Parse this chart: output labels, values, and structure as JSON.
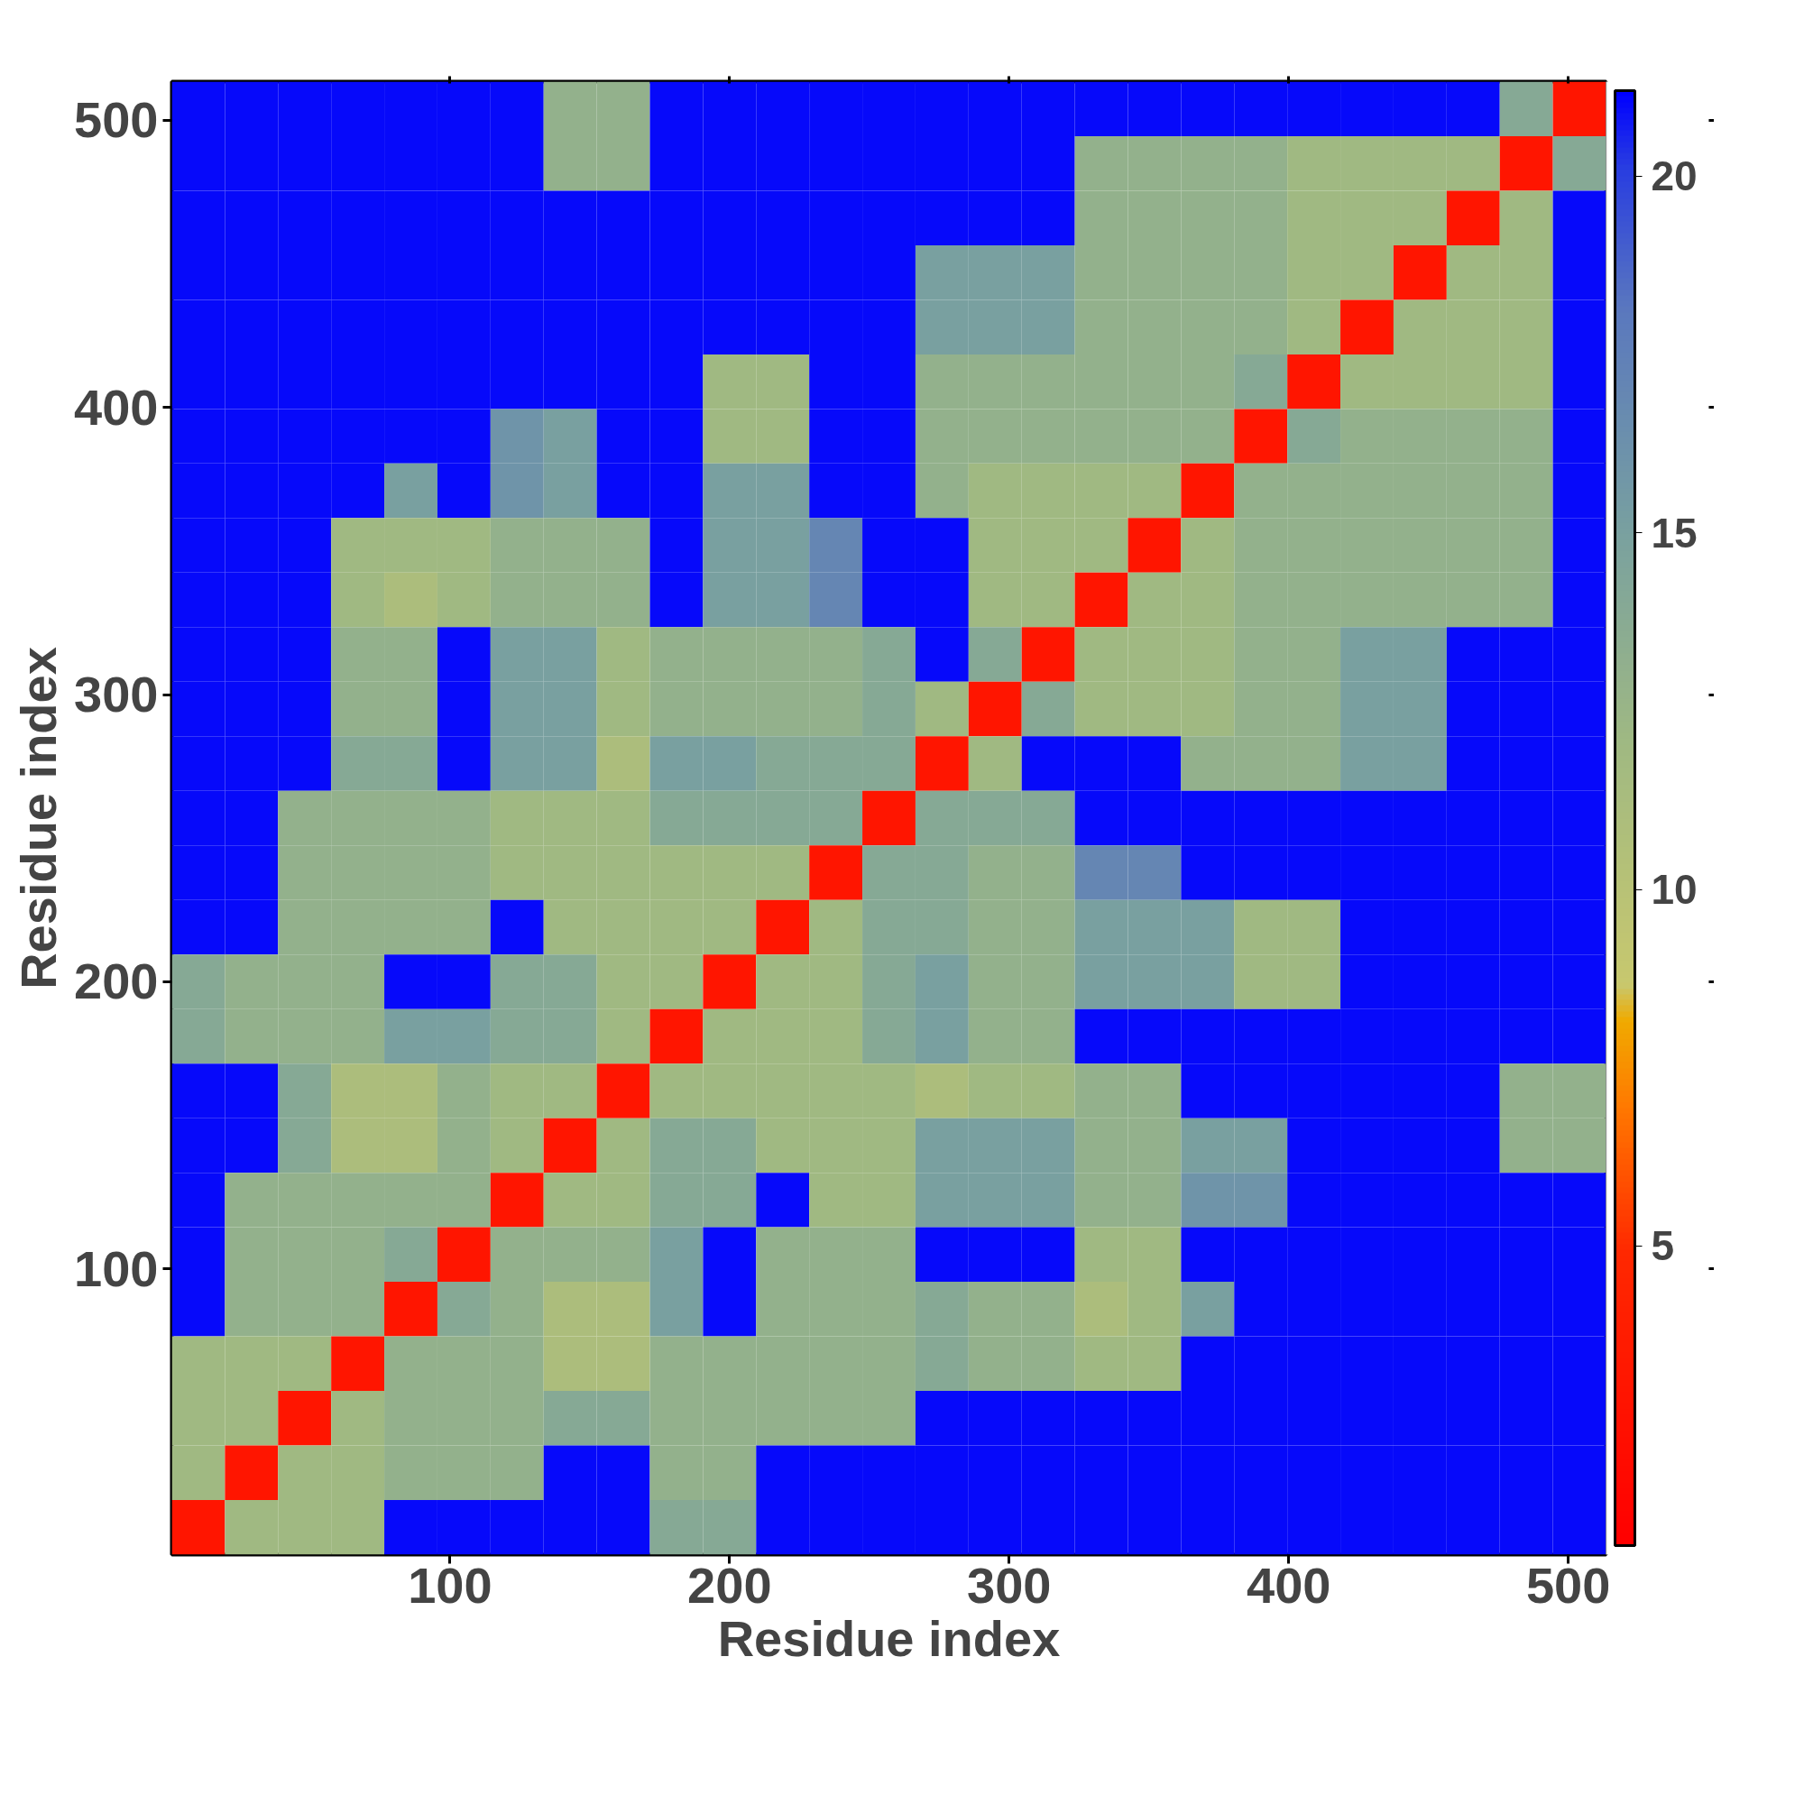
{
  "chart_data": {
    "type": "heatmap",
    "xlabel": "Residue index",
    "ylabel": "Residue index",
    "xlim": [
      0.5,
      513.5
    ],
    "ylim": [
      0.5,
      513.5
    ],
    "xticks": [
      100,
      200,
      300,
      400,
      500
    ],
    "yticks": [
      100,
      200,
      300,
      400,
      500
    ],
    "clim": [
      0.8,
      21.2
    ],
    "cticks": [
      5,
      10,
      15,
      20
    ],
    "cells": [
      [
        21,
        21,
        21,
        21,
        21,
        21,
        21,
        13,
        13,
        21,
        21,
        21,
        21,
        21,
        21,
        21,
        21,
        21,
        21,
        21,
        21,
        21,
        21,
        21,
        21,
        14,
        3
      ],
      [
        21,
        21,
        21,
        21,
        21,
        21,
        21,
        13,
        13,
        21,
        21,
        21,
        21,
        21,
        21,
        21,
        21,
        13,
        13,
        13,
        13,
        12,
        12,
        12,
        12,
        3,
        14
      ],
      [
        21,
        21,
        21,
        21,
        21,
        21,
        21,
        21,
        21,
        21,
        21,
        21,
        21,
        21,
        21,
        21,
        21,
        13,
        13,
        13,
        13,
        12,
        12,
        12,
        3,
        12,
        21
      ],
      [
        21,
        21,
        21,
        21,
        21,
        21,
        21,
        21,
        21,
        21,
        21,
        21,
        21,
        21,
        15,
        15,
        15,
        13,
        13,
        13,
        13,
        12,
        12,
        3,
        12,
        12,
        21
      ],
      [
        21,
        21,
        21,
        21,
        21,
        21,
        21,
        21,
        21,
        21,
        21,
        21,
        21,
        21,
        15,
        15,
        15,
        13,
        13,
        13,
        13,
        12,
        3,
        12,
        12,
        12,
        21
      ],
      [
        21,
        21,
        21,
        21,
        21,
        21,
        21,
        21,
        21,
        21,
        12,
        12,
        21,
        21,
        13,
        13,
        13,
        13,
        13,
        13,
        14,
        3,
        12,
        12,
        12,
        12,
        21
      ],
      [
        21,
        21,
        21,
        21,
        21,
        21,
        16,
        15,
        21,
        21,
        12,
        12,
        21,
        21,
        13,
        13,
        13,
        13,
        13,
        13,
        3,
        14,
        13,
        13,
        13,
        13,
        21
      ],
      [
        21,
        21,
        21,
        21,
        15,
        21,
        16,
        15,
        21,
        21,
        15,
        15,
        21,
        21,
        13,
        12,
        12,
        12,
        12,
        3,
        13,
        13,
        13,
        13,
        13,
        13,
        21
      ],
      [
        21,
        21,
        21,
        12,
        12,
        12,
        13,
        13,
        13,
        21,
        15,
        15,
        17,
        21,
        21,
        12,
        12,
        12,
        3,
        12,
        13,
        13,
        13,
        13,
        13,
        13,
        21
      ],
      [
        21,
        21,
        21,
        12,
        11,
        12,
        13,
        13,
        13,
        21,
        15,
        15,
        17,
        21,
        21,
        12,
        12,
        3,
        12,
        12,
        13,
        13,
        13,
        13,
        13,
        13,
        21
      ],
      [
        21,
        21,
        21,
        13,
        13,
        21,
        15,
        15,
        12,
        13,
        13,
        13,
        13,
        14,
        21,
        14,
        3,
        12,
        12,
        12,
        13,
        13,
        15,
        15,
        21,
        21,
        21
      ],
      [
        21,
        21,
        21,
        13,
        13,
        21,
        15,
        15,
        12,
        13,
        13,
        13,
        13,
        14,
        12,
        3,
        14,
        12,
        12,
        12,
        13,
        13,
        15,
        15,
        21,
        21,
        21
      ],
      [
        21,
        21,
        21,
        14,
        14,
        21,
        15,
        15,
        11,
        15,
        15,
        14,
        14,
        14,
        3,
        12,
        21,
        21,
        21,
        13,
        13,
        13,
        15,
        15,
        21,
        21,
        21
      ],
      [
        21,
        21,
        13,
        13,
        13,
        13,
        12,
        12,
        12,
        14,
        14,
        14,
        14,
        3,
        14,
        14,
        14,
        21,
        21,
        21,
        21,
        21,
        21,
        21,
        21,
        21,
        21
      ],
      [
        21,
        21,
        13,
        13,
        13,
        13,
        12,
        12,
        12,
        12,
        12,
        12,
        3,
        14,
        14,
        13,
        13,
        17,
        17,
        21,
        21,
        21,
        21,
        21,
        21,
        21,
        21
      ],
      [
        21,
        21,
        13,
        13,
        13,
        13,
        21,
        12,
        12,
        12,
        12,
        3,
        12,
        14,
        14,
        13,
        13,
        15,
        15,
        15,
        12,
        12,
        21,
        21,
        21,
        21,
        21
      ],
      [
        14,
        13,
        13,
        13,
        21,
        21,
        14,
        14,
        12,
        12,
        3,
        12,
        12,
        14,
        15,
        13,
        13,
        15,
        15,
        15,
        12,
        12,
        21,
        21,
        21,
        21,
        21
      ],
      [
        14,
        13,
        13,
        13,
        15,
        15,
        14,
        14,
        12,
        3,
        12,
        12,
        12,
        14,
        15,
        13,
        13,
        21,
        21,
        21,
        21,
        21,
        21,
        21,
        21,
        21,
        21
      ],
      [
        21,
        21,
        14,
        11,
        11,
        13,
        12,
        12,
        3,
        12,
        12,
        12,
        12,
        12,
        11,
        12,
        12,
        13,
        13,
        21,
        21,
        21,
        21,
        21,
        21,
        13,
        13
      ],
      [
        21,
        21,
        14,
        11,
        11,
        13,
        12,
        3,
        12,
        14,
        14,
        12,
        12,
        12,
        15,
        15,
        15,
        13,
        13,
        15,
        15,
        21,
        21,
        21,
        21,
        13,
        13
      ],
      [
        21,
        13,
        13,
        13,
        13,
        13,
        3,
        12,
        12,
        14,
        14,
        21,
        12,
        12,
        15,
        15,
        15,
        13,
        13,
        16,
        16,
        21,
        21,
        21,
        21,
        21,
        21
      ],
      [
        21,
        13,
        13,
        13,
        14,
        3,
        13,
        13,
        13,
        15,
        21,
        13,
        13,
        13,
        21,
        21,
        21,
        12,
        12,
        21,
        21,
        21,
        21,
        21,
        21,
        21,
        21
      ],
      [
        21,
        13,
        13,
        13,
        3,
        14,
        13,
        11,
        11,
        15,
        21,
        13,
        13,
        13,
        14,
        13,
        13,
        11,
        12,
        15,
        21,
        21,
        21,
        21,
        21,
        21,
        21
      ],
      [
        12,
        12,
        12,
        3,
        13,
        13,
        13,
        11,
        11,
        13,
        13,
        13,
        13,
        13,
        14,
        13,
        13,
        12,
        12,
        21,
        21,
        21,
        21,
        21,
        21,
        21,
        21
      ],
      [
        12,
        12,
        3,
        12,
        13,
        13,
        13,
        14,
        14,
        13,
        13,
        13,
        13,
        13,
        21,
        21,
        21,
        21,
        21,
        21,
        21,
        21,
        21,
        21,
        21,
        21,
        21
      ],
      [
        12,
        3,
        12,
        12,
        13,
        13,
        13,
        21,
        21,
        13,
        13,
        21,
        21,
        21,
        21,
        21,
        21,
        21,
        21,
        21,
        21,
        21,
        21,
        21,
        21,
        21,
        21
      ],
      [
        3,
        12,
        12,
        12,
        21,
        21,
        21,
        21,
        21,
        14,
        14,
        21,
        21,
        21,
        21,
        21,
        21,
        21,
        21,
        21,
        21,
        21,
        21,
        21,
        21,
        21,
        21
      ]
    ]
  }
}
